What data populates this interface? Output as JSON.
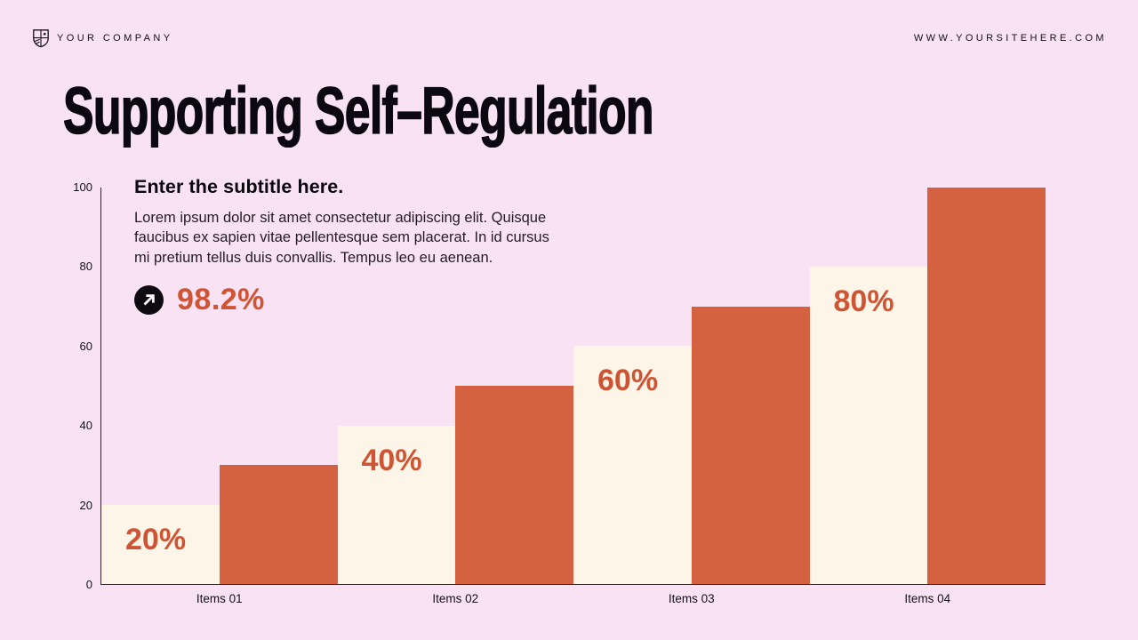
{
  "header": {
    "company": "YOUR COMPANY",
    "website": "WWW.YOURSITEHERE.COM",
    "logo_icon": "shield-crest-icon"
  },
  "title": "Supporting Self–Regulation",
  "panel": {
    "subtitle": "Enter the subtitle here.",
    "body": "Lorem ipsum dolor sit amet consectetur adipiscing elit. Quisque faucibus ex sapien vitae pellentesque sem placerat. In id cursus mi pretium tellus duis convallis. Tempus leo eu aenean.",
    "stat": {
      "value": "98.2%",
      "icon": "arrow-up-right-icon"
    }
  },
  "chart_data": {
    "type": "bar",
    "title": "",
    "categories": [
      "Items 01",
      "Items 02",
      "Items 03",
      "Items 04"
    ],
    "series": [
      {
        "name": "highlight",
        "color": "#fdf5e7",
        "values": [
          20,
          40,
          60,
          80
        ],
        "data_labels": [
          "20%",
          "40%",
          "60%",
          "80%"
        ]
      },
      {
        "name": "primary",
        "color": "#d4613f",
        "values": [
          30,
          50,
          70,
          100
        ],
        "data_labels": [
          "",
          "",
          "",
          ""
        ]
      }
    ],
    "xlabel": "",
    "ylabel": "",
    "y_ticks": [
      0,
      20,
      40,
      60,
      80,
      100
    ],
    "ylim": [
      0,
      100
    ],
    "grid": false,
    "legend": "none",
    "bar_arrangement": "paired-contiguous",
    "label_color": "#cf5434",
    "axis_color": "#2b2430"
  },
  "colors": {
    "background": "#f8e2f3",
    "ink": "#14101a",
    "ink_black": "#0b0812",
    "accent_orange": "#d4613f",
    "accent_orange_text": "#cf5434",
    "cream": "#fdf5e7",
    "axis": "#2b2430",
    "stat_circle": "#0d0a11"
  }
}
